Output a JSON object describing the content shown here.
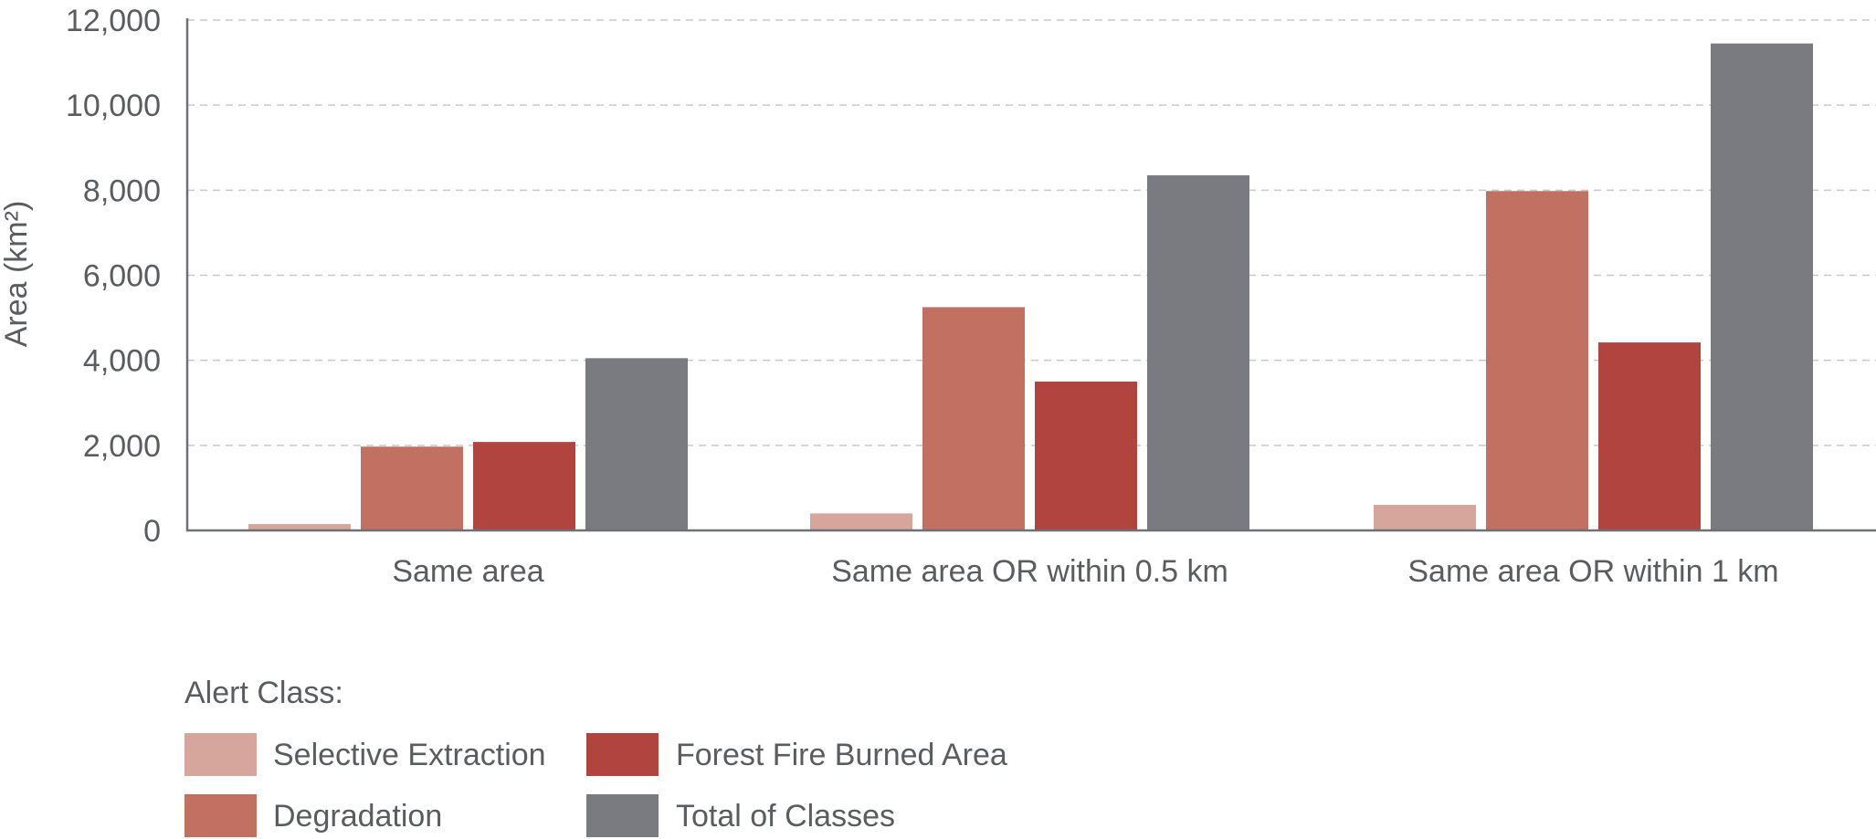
{
  "chart_data": {
    "type": "bar",
    "title": "",
    "xlabel": "",
    "ylabel": "Area (km²)",
    "ylim": [
      0,
      12000
    ],
    "yticks": [
      0,
      2000,
      4000,
      6000,
      8000,
      10000,
      12000
    ],
    "ytick_labels": [
      "0",
      "2,000",
      "4,000",
      "6,000",
      "8,000",
      "10,000",
      "12,000"
    ],
    "grid": true,
    "categories": [
      "Same area",
      "Same area OR within 0.5 km",
      "Same area OR within 1 km"
    ],
    "series": [
      {
        "name": "Selective Extraction",
        "color": "#d6a59b",
        "values": [
          150,
          400,
          600
        ]
      },
      {
        "name": "Degradation",
        "color": "#c17062",
        "values": [
          1970,
          5250,
          7980
        ]
      },
      {
        "name": "Forest Fire Burned Area",
        "color": "#b24440",
        "values": [
          2080,
          3500,
          4420
        ]
      },
      {
        "name": "Total of Classes",
        "color": "#797b80",
        "values": [
          4050,
          8350,
          11450
        ]
      }
    ],
    "legend": {
      "title": "Alert Class:",
      "placement": "bottom-left"
    }
  }
}
